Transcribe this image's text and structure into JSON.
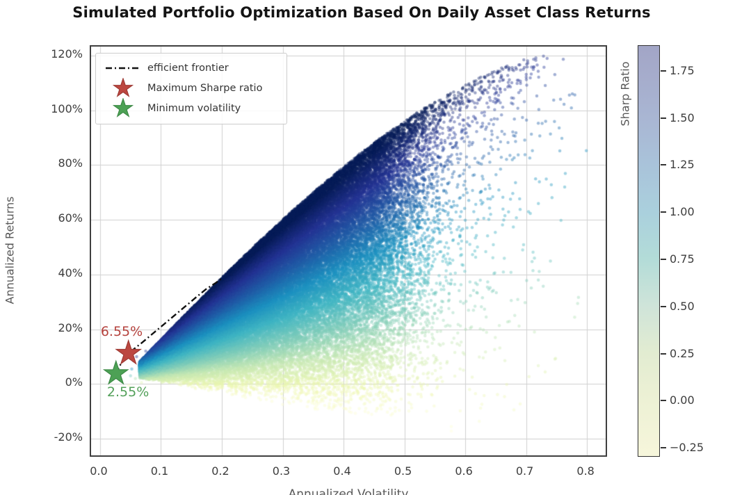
{
  "title": "Simulated Portfolio Optimization Based On Daily Asset Class Returns",
  "chart_data": {
    "type": "scatter",
    "title": "Simulated Portfolio Optimization Based On Daily Asset Class Returns",
    "xlabel": "Annualized Volatility",
    "ylabel": "Annualized Returns",
    "xlim": [
      -0.0148,
      0.8307
    ],
    "ylim": [
      -0.261,
      1.233
    ],
    "grid": true,
    "xticks": [
      {
        "v": 0.0,
        "label": "0.0"
      },
      {
        "v": 0.1,
        "label": "0.1"
      },
      {
        "v": 0.2,
        "label": "0.2"
      },
      {
        "v": 0.3,
        "label": "0.3"
      },
      {
        "v": 0.4,
        "label": "0.4"
      },
      {
        "v": 0.5,
        "label": "0.5"
      },
      {
        "v": 0.6,
        "label": "0.6"
      },
      {
        "v": 0.7,
        "label": "0.7"
      },
      {
        "v": 0.8,
        "label": "0.8"
      }
    ],
    "yticks": [
      {
        "v": -0.2,
        "label": "-20%"
      },
      {
        "v": 0.0,
        "label": "0%"
      },
      {
        "v": 0.2,
        "label": "20%"
      },
      {
        "v": 0.4,
        "label": "40%"
      },
      {
        "v": 0.6,
        "label": "60%"
      },
      {
        "v": 0.8,
        "label": "80%"
      },
      {
        "v": 1.0,
        "label": "100%"
      },
      {
        "v": 1.2,
        "label": "120%"
      }
    ],
    "colormap": {
      "name": "YlGnBu",
      "anchors": [
        [
          0.0,
          "#ffffd9"
        ],
        [
          0.125,
          "#edf8b1"
        ],
        [
          0.25,
          "#c7e9b4"
        ],
        [
          0.375,
          "#7fcdbb"
        ],
        [
          0.5,
          "#41b6c4"
        ],
        [
          0.625,
          "#1d91c0"
        ],
        [
          0.75,
          "#225ea8"
        ],
        [
          0.875,
          "#253494"
        ],
        [
          1.0,
          "#081d58"
        ]
      ],
      "point_alpha": 0.42
    },
    "colorbar": {
      "label": "Sharp Ratio",
      "domain": [
        -0.297,
        1.886
      ],
      "gradient": [
        [
          -0.297,
          "#f7f7dc"
        ],
        [
          -0.25,
          "#f5f5da"
        ],
        [
          0.0,
          "#edf1d5"
        ],
        [
          0.25,
          "#e2ecd1"
        ],
        [
          0.5,
          "#cfe4d9"
        ],
        [
          0.75,
          "#b3dcd8"
        ],
        [
          1.0,
          "#aad0dd"
        ],
        [
          1.25,
          "#a9c3da"
        ],
        [
          1.5,
          "#a9b6d3"
        ],
        [
          1.75,
          "#a5abcb"
        ],
        [
          1.886,
          "#a2a5c6"
        ]
      ],
      "ticks": [
        {
          "v": 1.75,
          "label": "1.75"
        },
        {
          "v": 1.5,
          "label": "1.50"
        },
        {
          "v": 1.25,
          "label": "1.25"
        },
        {
          "v": 1.0,
          "label": "1.00"
        },
        {
          "v": 0.75,
          "label": "0.75"
        },
        {
          "v": 0.5,
          "label": "0.50"
        },
        {
          "v": 0.25,
          "label": "0.25"
        },
        {
          "v": 0.0,
          "label": "0.00"
        },
        {
          "v": -0.25,
          "label": "−0.25"
        }
      ]
    },
    "points_model": {
      "n": 68000,
      "seed": 42,
      "v_min": 0.065,
      "v_max": 0.8,
      "v_density": [
        [
          0.065,
          11.0
        ],
        [
          0.15,
          8.0
        ],
        [
          0.25,
          6.5
        ],
        [
          0.35,
          5.5
        ],
        [
          0.45,
          3.6
        ],
        [
          0.5,
          1.5
        ],
        [
          0.55,
          0.4
        ],
        [
          0.6,
          0.15
        ],
        [
          0.7,
          0.04
        ],
        [
          0.8,
          0.008
        ]
      ],
      "trail": {
        "n": 400,
        "v_start": 0.45,
        "v_span": 0.28,
        "v_pow": 2.2,
        "depth": 0.06
      },
      "upper_edge": {
        "a": -0.0732,
        "b": 2.337,
        "c3": -1.091
      },
      "lower_edge": {
        "base": 0.018,
        "slope": -0.42,
        "v0": 0.07
      },
      "vertical_pow": 0.48,
      "jitter": 0.006,
      "r_cap": 1.21,
      "marker_radius": 2.25,
      "stray_points": [
        [
          0.052,
          0.055
        ],
        [
          0.058,
          0.02
        ],
        [
          0.047,
          -0.005
        ],
        [
          0.068,
          0.005
        ],
        [
          0.06,
          0.1
        ],
        [
          0.072,
          0.04
        ],
        [
          0.055,
          0.085
        ],
        [
          0.065,
          0.065
        ],
        [
          0.05,
          0.03
        ],
        [
          0.075,
          0.12
        ]
      ]
    },
    "efficient_frontier": [
      [
        0.026,
        0.038
      ],
      [
        0.034,
        0.073
      ],
      [
        0.047,
        0.112
      ],
      [
        0.058,
        0.132
      ],
      [
        0.07,
        0.153
      ],
      [
        0.085,
        0.181
      ],
      [
        0.1,
        0.209
      ],
      [
        0.115,
        0.237
      ],
      [
        0.13,
        0.265
      ],
      [
        0.145,
        0.293
      ],
      [
        0.16,
        0.321
      ],
      [
        0.175,
        0.348
      ],
      [
        0.19,
        0.369
      ],
      [
        0.2,
        0.386
      ]
    ],
    "markers": {
      "max_sharpe": {
        "x": 0.0466,
        "y": 0.112,
        "label": "Maximum Sharpe ratio",
        "annotation": "6.55%",
        "annot_x": 0.001,
        "annot_y": 0.193,
        "fill": "#bc4740",
        "edge": "#9e3a34",
        "text_color": "#b5423d"
      },
      "min_volatility": {
        "x": 0.0261,
        "y": 0.038,
        "label": "Minimum volatility",
        "annotation": "2.55%",
        "annot_x": 0.0114,
        "annot_y": -0.028,
        "fill": "#4da155",
        "edge": "#3d8a46",
        "text_color": "#53a05a"
      }
    },
    "legend": {
      "entries": [
        {
          "type": "line",
          "label": "efficient frontier",
          "color": "#111111"
        },
        {
          "type": "star",
          "label": "Maximum Sharpe ratio",
          "color": "#bc4740"
        },
        {
          "type": "star",
          "label": "Minimum volatility",
          "color": "#4da155"
        }
      ]
    },
    "grid_color": "#cfcfcf",
    "frame_color": "#3f3f3f"
  }
}
